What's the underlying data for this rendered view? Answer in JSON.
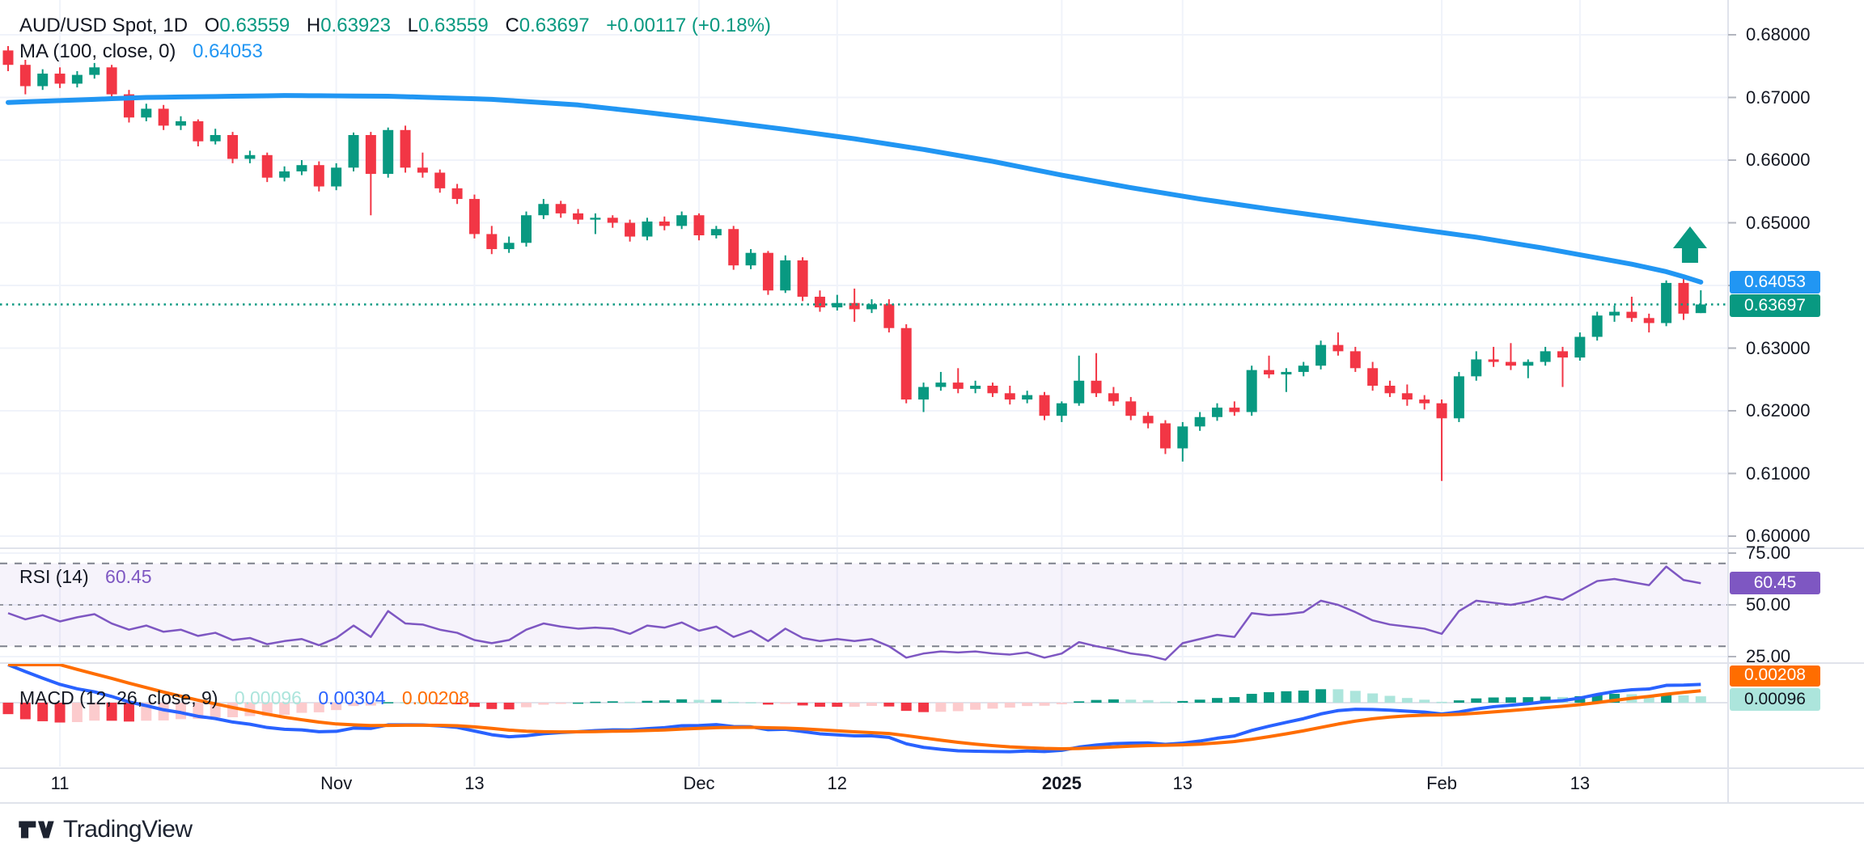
{
  "header": {
    "symbol": "AUD/USD Spot, 1D",
    "o_key": "O",
    "o_val": "0.63559",
    "h_key": "H",
    "h_val": "0.63923",
    "l_key": "L",
    "l_val": "0.63559",
    "c_key": "C",
    "c_val": "0.63697",
    "change": "+0.00117 (+0.18%)",
    "ma_label": "MA (100, close, 0)",
    "ma_value": "0.64053"
  },
  "rsi": {
    "label": "RSI (14)",
    "value": "60.45",
    "axis_labels": [
      "75.00",
      "50.00",
      "25.00"
    ],
    "axis_values": [
      75,
      50,
      25
    ],
    "upper_band": 70,
    "lower_band": 30
  },
  "macd": {
    "label": "MACD (12, 26, close, 9)",
    "hist_value": "0.00096",
    "macd_value": "0.00304",
    "signal_value": "0.00208",
    "fast": 12,
    "slow": 26,
    "signal": 9
  },
  "price_axis": {
    "labels": [
      "0.68000",
      "0.67000",
      "0.66000",
      "0.65000",
      "0.64000",
      "0.63000",
      "0.62000",
      "0.61000",
      "0.60000"
    ],
    "values": [
      0.68,
      0.67,
      0.66,
      0.65,
      0.64,
      0.63,
      0.62,
      0.61,
      0.6
    ],
    "hidden_values": [
      0.64,
      0.635
    ],
    "ma_badge": "0.64053",
    "close_badge": "0.63697"
  },
  "time_axis": [
    {
      "index": 3,
      "label": "11",
      "bold": false
    },
    {
      "index": 19,
      "label": "Nov",
      "bold": false
    },
    {
      "index": 27,
      "label": "13",
      "bold": false
    },
    {
      "index": 40,
      "label": "Dec",
      "bold": false
    },
    {
      "index": 48,
      "label": "12",
      "bold": false
    },
    {
      "index": 61,
      "label": "2025",
      "bold": true
    },
    {
      "index": 68,
      "label": "13",
      "bold": false
    },
    {
      "index": 83,
      "label": "Feb",
      "bold": false
    },
    {
      "index": 91,
      "label": "13",
      "bold": false
    }
  ],
  "logo": {
    "text": "TradingView"
  },
  "colors": {
    "up": "#089981",
    "down": "#F23645",
    "ma_line": "#2196F3",
    "close_line": "#089981",
    "grid": "#F0F3FA",
    "separator": "#E0E3EB",
    "tick": "#B2B5BE",
    "rsi_line": "#7E57C2",
    "rsi_band_fill": "rgba(126,87,194,0.07)",
    "rsi_dash": "#7E828C",
    "macd_line": "#2962FF",
    "macd_signal": "#FF6D00",
    "hist_pos_grow": "#089981",
    "hist_pos_fall": "#ACE5DC",
    "hist_neg_rise": "#FCCBCD",
    "hist_neg_fall": "#F23645",
    "arrow": "#089981"
  },
  "chart_data": {
    "type": "candlestick",
    "title": "AUD/USD Spot, 1D",
    "ylim": [
      0.598,
      0.6825
    ],
    "last_bar": {
      "open": 0.63559,
      "high": 0.63923,
      "low": 0.63559,
      "close": 0.63697
    },
    "candles": [
      [
        0.6775,
        0.6782,
        0.6742,
        0.6752
      ],
      [
        0.6752,
        0.676,
        0.6705,
        0.6718
      ],
      [
        0.6718,
        0.6745,
        0.6712,
        0.6738
      ],
      [
        0.6738,
        0.6748,
        0.6715,
        0.6722
      ],
      [
        0.6722,
        0.6742,
        0.6716,
        0.6736
      ],
      [
        0.6736,
        0.6755,
        0.673,
        0.6748
      ],
      [
        0.6748,
        0.6752,
        0.6698,
        0.6705
      ],
      [
        0.6705,
        0.6712,
        0.666,
        0.6668
      ],
      [
        0.6668,
        0.669,
        0.6662,
        0.6682
      ],
      [
        0.6682,
        0.6688,
        0.6648,
        0.6655
      ],
      [
        0.6655,
        0.667,
        0.6648,
        0.6662
      ],
      [
        0.6662,
        0.6665,
        0.6622,
        0.663
      ],
      [
        0.663,
        0.665,
        0.6625,
        0.664
      ],
      [
        0.664,
        0.6645,
        0.6595,
        0.6602
      ],
      [
        0.6602,
        0.6615,
        0.6595,
        0.6608
      ],
      [
        0.6608,
        0.6612,
        0.6565,
        0.6572
      ],
      [
        0.6572,
        0.659,
        0.6566,
        0.6582
      ],
      [
        0.6582,
        0.66,
        0.6576,
        0.6592
      ],
      [
        0.6592,
        0.6598,
        0.655,
        0.6558
      ],
      [
        0.6558,
        0.6595,
        0.6552,
        0.6588
      ],
      [
        0.6588,
        0.6644,
        0.6582,
        0.664
      ],
      [
        0.664,
        0.6645,
        0.6512,
        0.6578
      ],
      [
        0.6578,
        0.6652,
        0.6572,
        0.6648
      ],
      [
        0.6648,
        0.6655,
        0.658,
        0.6588
      ],
      [
        0.6588,
        0.6612,
        0.6572,
        0.658
      ],
      [
        0.658,
        0.6585,
        0.6548,
        0.6555
      ],
      [
        0.6555,
        0.6562,
        0.653,
        0.6538
      ],
      [
        0.6538,
        0.6545,
        0.6475,
        0.6482
      ],
      [
        0.6482,
        0.6495,
        0.645,
        0.6458
      ],
      [
        0.6458,
        0.6478,
        0.6452,
        0.6468
      ],
      [
        0.6468,
        0.6518,
        0.6462,
        0.6512
      ],
      [
        0.6512,
        0.6538,
        0.6506,
        0.653
      ],
      [
        0.653,
        0.6535,
        0.6508,
        0.6515
      ],
      [
        0.6515,
        0.6522,
        0.6498,
        0.6505
      ],
      [
        0.6505,
        0.6515,
        0.6482,
        0.6508
      ],
      [
        0.6508,
        0.6512,
        0.6492,
        0.65
      ],
      [
        0.65,
        0.6505,
        0.647,
        0.6478
      ],
      [
        0.6478,
        0.6508,
        0.6472,
        0.6502
      ],
      [
        0.6502,
        0.651,
        0.6488,
        0.6495
      ],
      [
        0.6495,
        0.6518,
        0.649,
        0.6512
      ],
      [
        0.6512,
        0.6515,
        0.6472,
        0.648
      ],
      [
        0.648,
        0.6495,
        0.6475,
        0.649
      ],
      [
        0.649,
        0.6495,
        0.6425,
        0.6432
      ],
      [
        0.6432,
        0.6458,
        0.6426,
        0.6452
      ],
      [
        0.6452,
        0.6455,
        0.6385,
        0.6392
      ],
      [
        0.6392,
        0.6448,
        0.6388,
        0.644
      ],
      [
        0.644,
        0.6445,
        0.6375,
        0.6382
      ],
      [
        0.6382,
        0.6392,
        0.6358,
        0.6365
      ],
      [
        0.6365,
        0.6385,
        0.636,
        0.6372
      ],
      [
        0.6372,
        0.6395,
        0.6342,
        0.6362
      ],
      [
        0.6362,
        0.6378,
        0.6356,
        0.637
      ],
      [
        0.637,
        0.6378,
        0.6325,
        0.6332
      ],
      [
        0.6332,
        0.6338,
        0.6212,
        0.6218
      ],
      [
        0.6218,
        0.6245,
        0.6198,
        0.6238
      ],
      [
        0.6238,
        0.6262,
        0.6232,
        0.6245
      ],
      [
        0.6245,
        0.6268,
        0.6228,
        0.6235
      ],
      [
        0.6235,
        0.6248,
        0.6228,
        0.624
      ],
      [
        0.624,
        0.6245,
        0.6222,
        0.6228
      ],
      [
        0.6228,
        0.624,
        0.621,
        0.6218
      ],
      [
        0.6218,
        0.6232,
        0.6212,
        0.6225
      ],
      [
        0.6225,
        0.623,
        0.6185,
        0.6192
      ],
      [
        0.6192,
        0.6215,
        0.6182,
        0.6212
      ],
      [
        0.6212,
        0.6288,
        0.6208,
        0.6248
      ],
      [
        0.6248,
        0.6292,
        0.6222,
        0.6228
      ],
      [
        0.6228,
        0.6238,
        0.6208,
        0.6215
      ],
      [
        0.6215,
        0.6222,
        0.6185,
        0.6192
      ],
      [
        0.6192,
        0.6198,
        0.6172,
        0.618
      ],
      [
        0.618,
        0.6185,
        0.6131,
        0.614
      ],
      [
        0.614,
        0.6182,
        0.6119,
        0.6175
      ],
      [
        0.6175,
        0.6198,
        0.6168,
        0.619
      ],
      [
        0.619,
        0.6212,
        0.6184,
        0.6205
      ],
      [
        0.6205,
        0.6215,
        0.6192,
        0.6198
      ],
      [
        0.6198,
        0.6272,
        0.6192,
        0.6265
      ],
      [
        0.6265,
        0.6288,
        0.6252,
        0.6258
      ],
      [
        0.6258,
        0.6268,
        0.623,
        0.6262
      ],
      [
        0.6262,
        0.6278,
        0.6255,
        0.6272
      ],
      [
        0.6272,
        0.6312,
        0.6266,
        0.6305
      ],
      [
        0.6305,
        0.6325,
        0.6288,
        0.6295
      ],
      [
        0.6295,
        0.6302,
        0.6262,
        0.6268
      ],
      [
        0.6268,
        0.6278,
        0.6232,
        0.624
      ],
      [
        0.624,
        0.6248,
        0.6222,
        0.6228
      ],
      [
        0.6228,
        0.6242,
        0.6208,
        0.6218
      ],
      [
        0.6218,
        0.6225,
        0.6202,
        0.6212
      ],
      [
        0.6212,
        0.6218,
        0.6088,
        0.6188
      ],
      [
        0.6188,
        0.6262,
        0.6182,
        0.6255
      ],
      [
        0.6255,
        0.6295,
        0.6248,
        0.6282
      ],
      [
        0.6282,
        0.6302,
        0.627,
        0.6278
      ],
      [
        0.6278,
        0.6308,
        0.6265,
        0.6272
      ],
      [
        0.6272,
        0.6282,
        0.6252,
        0.6278
      ],
      [
        0.6278,
        0.6302,
        0.6272,
        0.6295
      ],
      [
        0.6295,
        0.6302,
        0.6238,
        0.6285
      ],
      [
        0.6285,
        0.6325,
        0.628,
        0.6318
      ],
      [
        0.6318,
        0.6358,
        0.6312,
        0.6352
      ],
      [
        0.6352,
        0.6368,
        0.6342,
        0.6358
      ],
      [
        0.6358,
        0.6382,
        0.6342,
        0.6348
      ],
      [
        0.6348,
        0.6355,
        0.6325,
        0.634
      ],
      [
        0.634,
        0.6408,
        0.6335,
        0.6404
      ],
      [
        0.6404,
        0.6412,
        0.6345,
        0.6355
      ],
      [
        0.63559,
        0.63923,
        0.63559,
        0.63697
      ]
    ],
    "pre_closes": [
      0.65,
      0.652,
      0.6545,
      0.6565,
      0.659,
      0.661,
      0.664,
      0.6665,
      0.669,
      0.671,
      0.6735,
      0.676,
      0.678,
      0.68,
      0.6825,
      0.685,
      0.687,
      0.689,
      0.6905,
      0.692,
      0.6935,
      0.693,
      0.6915,
      0.6895,
      0.687,
      0.684
    ],
    "ma100_points": [
      [
        0,
        0.6692
      ],
      [
        8,
        0.67
      ],
      [
        16,
        0.6703
      ],
      [
        22,
        0.6702
      ],
      [
        28,
        0.6697
      ],
      [
        33,
        0.6688
      ],
      [
        37,
        0.6676
      ],
      [
        41,
        0.6663
      ],
      [
        45,
        0.6649
      ],
      [
        49,
        0.6634
      ],
      [
        53,
        0.6617
      ],
      [
        57,
        0.6598
      ],
      [
        61,
        0.6576
      ],
      [
        65,
        0.6556
      ],
      [
        69,
        0.6538
      ],
      [
        73,
        0.6522
      ],
      [
        77,
        0.6507
      ],
      [
        81,
        0.6492
      ],
      [
        85,
        0.6477
      ],
      [
        89,
        0.6459
      ],
      [
        92,
        0.6444
      ],
      [
        94,
        0.6434
      ],
      [
        96,
        0.6422
      ],
      [
        97,
        0.6414
      ],
      [
        98,
        0.64053
      ]
    ],
    "rsi14": [
      46,
      43,
      45,
      42,
      44,
      45.5,
      41,
      38,
      40,
      37,
      38,
      35,
      36.5,
      33,
      34,
      31,
      32.5,
      33.5,
      30.5,
      34,
      40,
      34.5,
      47,
      41,
      40.5,
      38,
      36.5,
      33,
      31.5,
      33,
      38,
      41,
      39.5,
      38.5,
      39,
      38.5,
      36,
      40,
      39,
      41.5,
      37.5,
      39.5,
      34.5,
      37.5,
      32.5,
      38.5,
      34,
      32.5,
      33.5,
      32.5,
      33.5,
      30,
      24.5,
      26.5,
      27.5,
      27,
      27.5,
      26.5,
      26,
      27,
      24.5,
      26.5,
      32,
      30,
      28.5,
      26.5,
      25.5,
      23.5,
      31.5,
      33.5,
      35.5,
      34.5,
      46,
      45,
      45.5,
      46.5,
      52,
      50,
      46.5,
      42.5,
      40.5,
      39.5,
      38.5,
      36,
      47,
      52,
      51,
      50,
      51.5,
      54,
      52.5,
      57,
      61.5,
      62.5,
      61,
      59.5,
      68.5,
      62,
      60.45
    ],
    "up_arrow_index": 97
  }
}
